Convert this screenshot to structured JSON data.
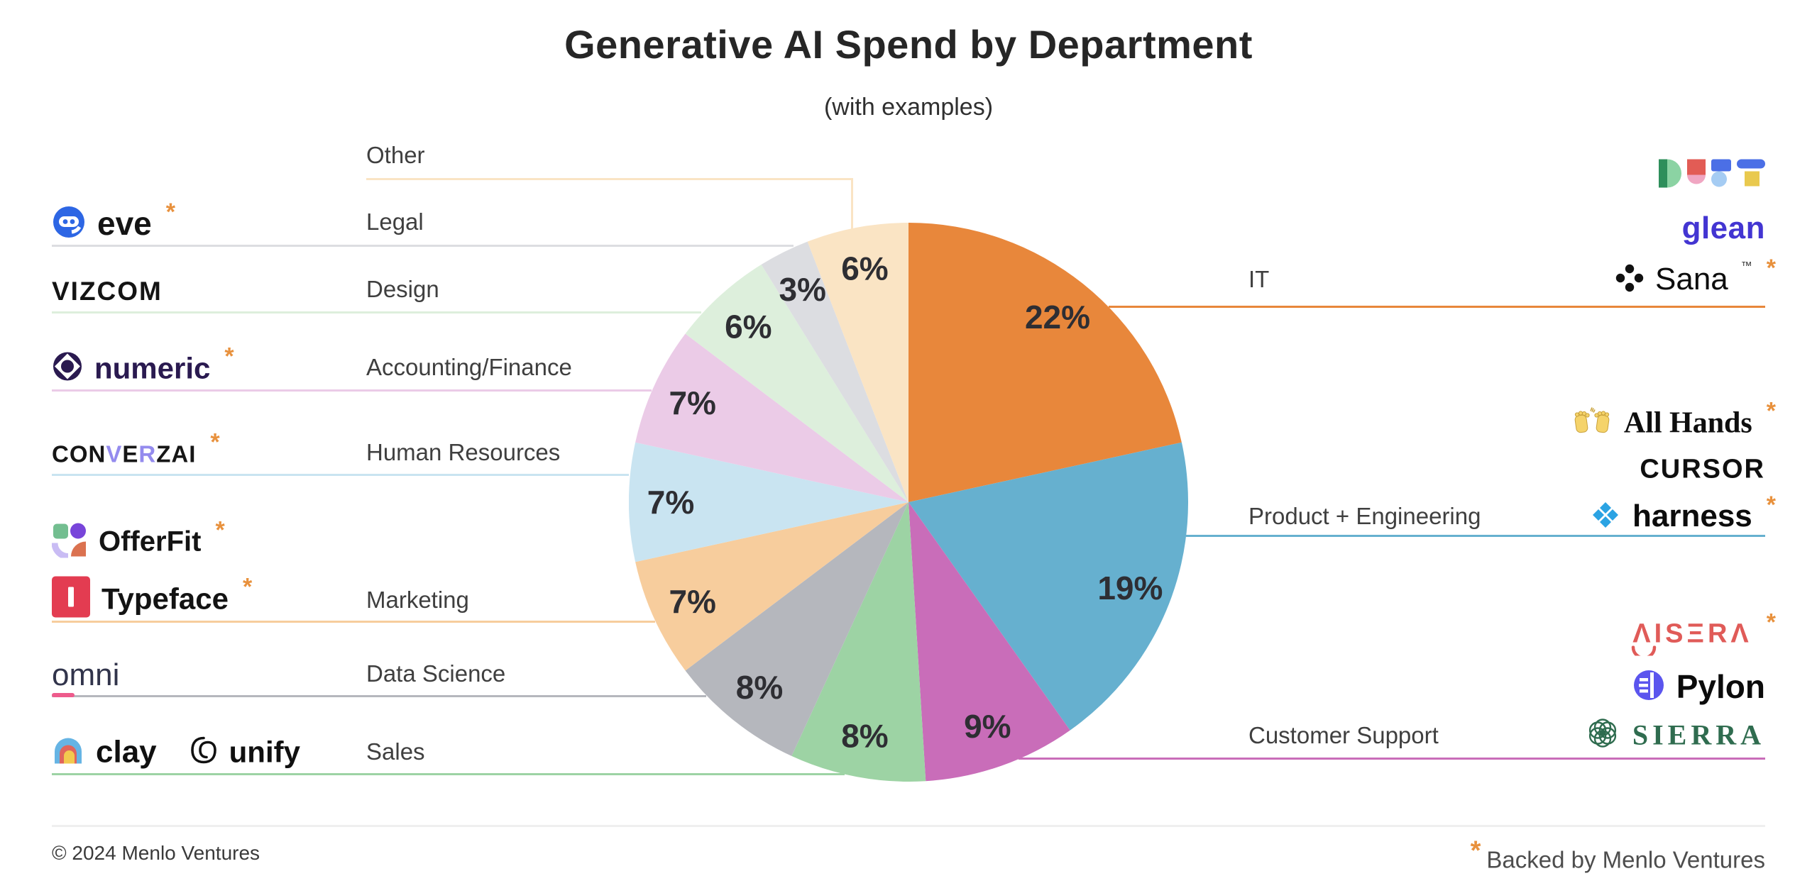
{
  "header": {
    "title": "Generative AI Spend by Department",
    "subtitle": "(with examples)"
  },
  "chart_data": {
    "type": "pie",
    "title": "Generative AI Spend by Department",
    "subtitle": "(with examples)",
    "start_angle": "12 o'clock, clockwise",
    "legend_position": "labels around pie with colored leader lines",
    "labels": [
      "IT",
      "Product + Engineering",
      "Customer Support",
      "Sales",
      "Data Science",
      "Marketing",
      "Human Resources",
      "Accounting/Finance",
      "Design",
      "Legal",
      "Other"
    ],
    "values": [
      22,
      19,
      9,
      8,
      8,
      7,
      7,
      7,
      6,
      3,
      6
    ],
    "value_labels": [
      "22%",
      "19%",
      "9%",
      "8%",
      "8%",
      "7%",
      "7%",
      "7%",
      "6%",
      "3%",
      "6%"
    ],
    "colors": [
      "#E8873B",
      "#66B0CF",
      "#C96DB9",
      "#9DD3A4",
      "#B5B7BD",
      "#F7CD9D",
      "#C9E4F1",
      "#EBCBE7",
      "#DDEFDC",
      "#DCDDE1",
      "#FAE4C4"
    ],
    "pct_label_color": "#2E2E33"
  },
  "left_labels": {
    "other": "Other",
    "legal": "Legal",
    "design": "Design",
    "accounting": "Accounting/Finance",
    "hr": "Human Resources",
    "marketing": "Marketing",
    "data_science": "Data Science",
    "sales": "Sales"
  },
  "right_labels": {
    "it": "IT",
    "product_eng": "Product + Engineering",
    "customer_support": "Customer Support"
  },
  "logos": {
    "eve": {
      "text": "eve",
      "asterisk": "*"
    },
    "vizcom": {
      "text": "VIZCOM"
    },
    "numeric": {
      "text": "numeric",
      "asterisk": "*"
    },
    "converzai": {
      "text": "CONVERZAI",
      "p1": "CON",
      "p2": "V",
      "p3": "E",
      "p4": "R",
      "p5": "ZAI",
      "asterisk": "*"
    },
    "offerfit": {
      "text": "OfferFit",
      "asterisk": "*"
    },
    "typeface": {
      "text": "Typeface",
      "asterisk": "*"
    },
    "omni": {
      "text": "omni",
      "first": "o",
      "rest": "mni"
    },
    "clay": {
      "text": "clay"
    },
    "unify": {
      "text": "unify"
    },
    "dust": {
      "text": "DUST"
    },
    "glean": {
      "text": "glean"
    },
    "sana": {
      "text": "Sana",
      "tm": "™",
      "asterisk": "*"
    },
    "allhands": {
      "text": "All Hands",
      "asterisk": "*"
    },
    "cursor": {
      "text": "CURSOR"
    },
    "harness": {
      "text": "harness",
      "asterisk": "*"
    },
    "aisera": {
      "text": "AISERA",
      "stylized": "ΛISΞRΛ",
      "asterisk": "*"
    },
    "pylon": {
      "text": "Pylon"
    },
    "sierra": {
      "text": "SIERRA"
    }
  },
  "footer": {
    "copyright": "© 2024 Menlo Ventures",
    "legend_asterisk": "*",
    "legend_text": "Backed by Menlo Ventures"
  },
  "accent_color": "#E8913D"
}
